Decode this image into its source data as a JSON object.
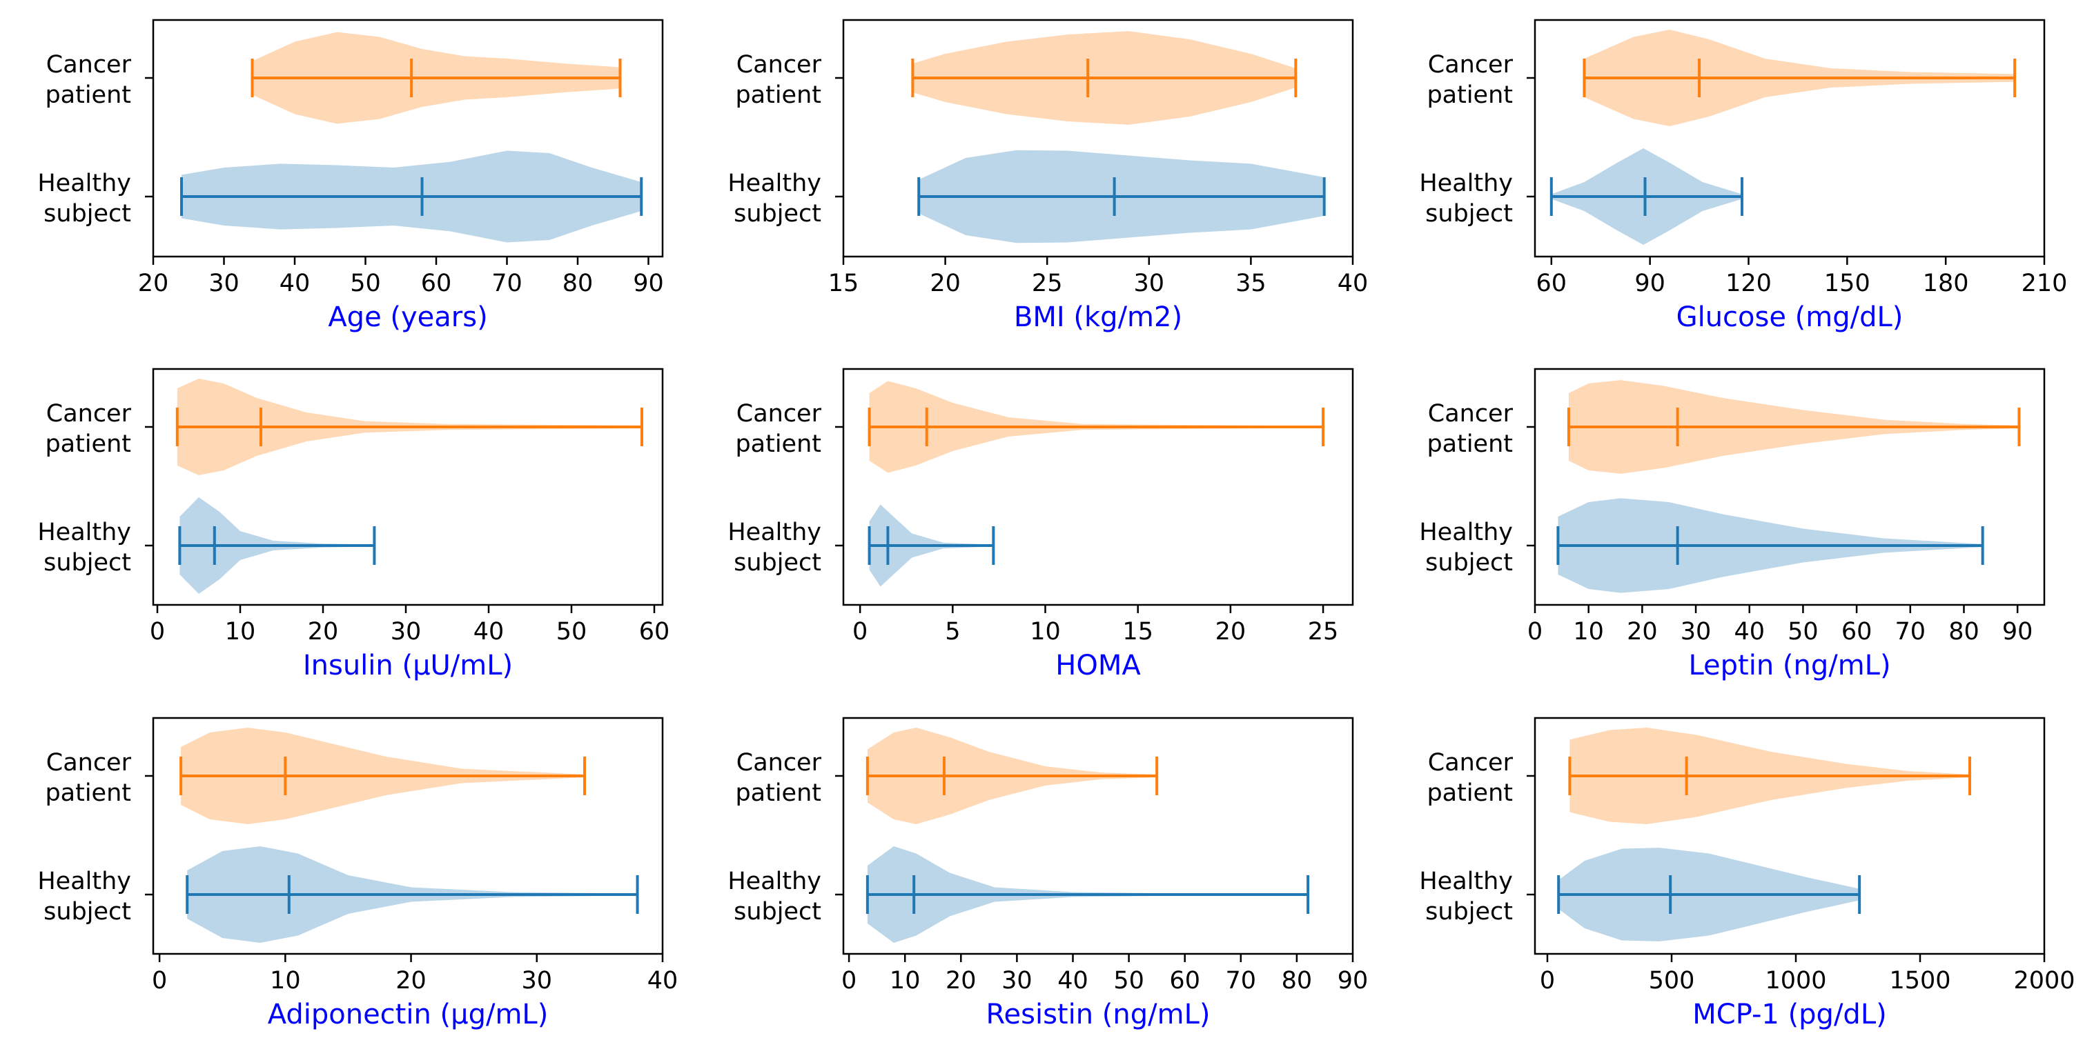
{
  "colors": {
    "cancer": "#ff7f0e",
    "healthy": "#1f77b4",
    "xlabel": "#0000ff",
    "axes": "#000000"
  },
  "chart_data": [
    {
      "type": "violin",
      "xlabel": "Age (years)",
      "xlim": [
        20,
        92
      ],
      "xticks": [
        20,
        30,
        40,
        50,
        60,
        70,
        80,
        90
      ],
      "categories": [
        "Cancer\npatient",
        "Healthy\nsubject"
      ],
      "series": [
        {
          "key": "cancer",
          "min": 34,
          "median": 56.5,
          "max": 86,
          "density": [
            [
              34,
              0.35
            ],
            [
              40,
              0.75
            ],
            [
              46,
              0.95
            ],
            [
              52,
              0.85
            ],
            [
              58,
              0.6
            ],
            [
              64,
              0.45
            ],
            [
              70,
              0.4
            ],
            [
              78,
              0.3
            ],
            [
              86,
              0.22
            ]
          ]
        },
        {
          "key": "healthy",
          "min": 24,
          "median": 58,
          "max": 89,
          "density": [
            [
              24,
              0.45
            ],
            [
              30,
              0.6
            ],
            [
              38,
              0.68
            ],
            [
              46,
              0.65
            ],
            [
              54,
              0.6
            ],
            [
              62,
              0.72
            ],
            [
              70,
              0.95
            ],
            [
              76,
              0.9
            ],
            [
              82,
              0.6
            ],
            [
              89,
              0.3
            ]
          ]
        }
      ]
    },
    {
      "type": "violin",
      "xlabel": "BMI (kg/m2)",
      "xlim": [
        15,
        40
      ],
      "xticks": [
        15,
        20,
        25,
        30,
        35,
        40
      ],
      "categories": [
        "Cancer\npatient",
        "Healthy\nsubject"
      ],
      "series": [
        {
          "key": "cancer",
          "min": 18.4,
          "median": 27,
          "max": 37.2,
          "density": [
            [
              18.4,
              0.3
            ],
            [
              20,
              0.5
            ],
            [
              23,
              0.75
            ],
            [
              26,
              0.9
            ],
            [
              29,
              0.97
            ],
            [
              32,
              0.8
            ],
            [
              35,
              0.5
            ],
            [
              37.2,
              0.2
            ]
          ]
        },
        {
          "key": "healthy",
          "min": 18.7,
          "median": 28.3,
          "max": 38.6,
          "density": [
            [
              18.7,
              0.35
            ],
            [
              21,
              0.8
            ],
            [
              23.5,
              0.96
            ],
            [
              26,
              0.95
            ],
            [
              29,
              0.85
            ],
            [
              32,
              0.75
            ],
            [
              35,
              0.68
            ],
            [
              38.6,
              0.4
            ]
          ]
        }
      ]
    },
    {
      "type": "violin",
      "xlabel": "Glucose (mg/dL)",
      "xlim": [
        55,
        210
      ],
      "xticks": [
        60,
        90,
        120,
        150,
        180,
        210
      ],
      "categories": [
        "Cancer\npatient",
        "Healthy\nsubject"
      ],
      "series": [
        {
          "key": "cancer",
          "min": 70,
          "median": 105,
          "max": 201,
          "density": [
            [
              70,
              0.4
            ],
            [
              85,
              0.85
            ],
            [
              96,
              1.0
            ],
            [
              108,
              0.8
            ],
            [
              125,
              0.4
            ],
            [
              145,
              0.2
            ],
            [
              170,
              0.12
            ],
            [
              201,
              0.08
            ]
          ]
        },
        {
          "key": "healthy",
          "min": 60,
          "median": 88.5,
          "max": 118,
          "density": [
            [
              60,
              0.05
            ],
            [
              70,
              0.3
            ],
            [
              80,
              0.7
            ],
            [
              88,
              1.0
            ],
            [
              96,
              0.7
            ],
            [
              106,
              0.3
            ],
            [
              118,
              0.05
            ]
          ]
        }
      ]
    },
    {
      "type": "violin",
      "xlabel": "Insulin (µU/mL)",
      "xlim": [
        -0.5,
        61
      ],
      "xticks": [
        0,
        10,
        20,
        30,
        40,
        50,
        60
      ],
      "categories": [
        "Cancer\npatient",
        "Healthy\nsubject"
      ],
      "series": [
        {
          "key": "cancer",
          "min": 2.4,
          "median": 12.5,
          "max": 58.5,
          "density": [
            [
              2.4,
              0.8
            ],
            [
              5,
              1.0
            ],
            [
              8,
              0.9
            ],
            [
              12,
              0.6
            ],
            [
              18,
              0.3
            ],
            [
              25,
              0.12
            ],
            [
              35,
              0.06
            ],
            [
              58.5,
              0.03
            ]
          ]
        },
        {
          "key": "healthy",
          "min": 2.7,
          "median": 6.9,
          "max": 26.2,
          "density": [
            [
              2.7,
              0.6
            ],
            [
              5,
              1.0
            ],
            [
              7.5,
              0.7
            ],
            [
              10,
              0.3
            ],
            [
              14,
              0.1
            ],
            [
              20,
              0.04
            ],
            [
              26.2,
              0.02
            ]
          ]
        }
      ]
    },
    {
      "type": "violin",
      "xlabel": "HOMA",
      "xlim": [
        -0.9,
        26.6
      ],
      "xticks": [
        0,
        5,
        10,
        15,
        20,
        25
      ],
      "categories": [
        "Cancer\npatient",
        "Healthy\nsubject"
      ],
      "series": [
        {
          "key": "cancer",
          "min": 0.5,
          "median": 3.6,
          "max": 25,
          "density": [
            [
              0.5,
              0.7
            ],
            [
              1.5,
              0.95
            ],
            [
              3,
              0.8
            ],
            [
              5,
              0.5
            ],
            [
              8,
              0.2
            ],
            [
              12,
              0.06
            ],
            [
              25,
              0.02
            ]
          ]
        },
        {
          "key": "healthy",
          "min": 0.5,
          "median": 1.5,
          "max": 7.2,
          "density": [
            [
              0.5,
              0.5
            ],
            [
              1.1,
              0.85
            ],
            [
              1.8,
              0.6
            ],
            [
              2.8,
              0.25
            ],
            [
              4.5,
              0.06
            ],
            [
              7.2,
              0.02
            ]
          ]
        }
      ]
    },
    {
      "type": "violin",
      "xlabel": "Leptin (ng/mL)",
      "xlim": [
        0,
        95
      ],
      "xticks": [
        0,
        10,
        20,
        30,
        40,
        50,
        60,
        70,
        80,
        90
      ],
      "categories": [
        "Cancer\npatient",
        "Healthy\nsubject"
      ],
      "series": [
        {
          "key": "cancer",
          "min": 6.3,
          "median": 26.6,
          "max": 90.3,
          "density": [
            [
              6.3,
              0.7
            ],
            [
              10,
              0.9
            ],
            [
              16,
              0.97
            ],
            [
              24,
              0.85
            ],
            [
              35,
              0.6
            ],
            [
              50,
              0.35
            ],
            [
              65,
              0.15
            ],
            [
              80,
              0.06
            ],
            [
              90.3,
              0.03
            ]
          ]
        },
        {
          "key": "healthy",
          "min": 4.3,
          "median": 26.6,
          "max": 83.5,
          "density": [
            [
              4.3,
              0.6
            ],
            [
              10,
              0.9
            ],
            [
              16,
              0.98
            ],
            [
              25,
              0.9
            ],
            [
              35,
              0.65
            ],
            [
              50,
              0.35
            ],
            [
              65,
              0.15
            ],
            [
              83.5,
              0.03
            ]
          ]
        }
      ]
    },
    {
      "type": "violin",
      "xlabel": "Adiponectin (µg/mL)",
      "xlim": [
        -0.5,
        40
      ],
      "xticks": [
        0,
        10,
        20,
        30,
        40
      ],
      "categories": [
        "Cancer\npatient",
        "Healthy\nsubject"
      ],
      "series": [
        {
          "key": "cancer",
          "min": 1.7,
          "median": 10,
          "max": 33.8,
          "density": [
            [
              1.7,
              0.6
            ],
            [
              4,
              0.9
            ],
            [
              7,
              1.0
            ],
            [
              10,
              0.9
            ],
            [
              14,
              0.65
            ],
            [
              18,
              0.4
            ],
            [
              24,
              0.15
            ],
            [
              33.8,
              0.03
            ]
          ]
        },
        {
          "key": "healthy",
          "min": 2.2,
          "median": 10.3,
          "max": 38,
          "density": [
            [
              2.2,
              0.5
            ],
            [
              5,
              0.9
            ],
            [
              8,
              1.0
            ],
            [
              11,
              0.85
            ],
            [
              15,
              0.4
            ],
            [
              20,
              0.15
            ],
            [
              28,
              0.05
            ],
            [
              38,
              0.02
            ]
          ]
        }
      ]
    },
    {
      "type": "violin",
      "xlabel": "Resistin (ng/mL)",
      "xlim": [
        -1,
        90
      ],
      "xticks": [
        0,
        10,
        20,
        30,
        40,
        50,
        60,
        70,
        80,
        90
      ],
      "categories": [
        "Cancer\npatient",
        "Healthy\nsubject"
      ],
      "series": [
        {
          "key": "cancer",
          "min": 3.3,
          "median": 17,
          "max": 55,
          "density": [
            [
              3.3,
              0.55
            ],
            [
              8,
              0.9
            ],
            [
              12,
              1.0
            ],
            [
              18,
              0.8
            ],
            [
              25,
              0.5
            ],
            [
              35,
              0.2
            ],
            [
              45,
              0.07
            ],
            [
              55,
              0.03
            ]
          ]
        },
        {
          "key": "healthy",
          "min": 3.3,
          "median": 11.6,
          "max": 82,
          "density": [
            [
              3.3,
              0.6
            ],
            [
              8,
              1.0
            ],
            [
              12,
              0.85
            ],
            [
              18,
              0.45
            ],
            [
              26,
              0.15
            ],
            [
              40,
              0.05
            ],
            [
              60,
              0.02
            ],
            [
              82,
              0.01
            ]
          ]
        }
      ]
    },
    {
      "type": "violin",
      "xlabel": "MCP-1 (pg/dL)",
      "xlim": [
        -50,
        2000
      ],
      "xticks": [
        0,
        500,
        1000,
        1500,
        2000
      ],
      "categories": [
        "Cancer\npatient",
        "Healthy\nsubject"
      ],
      "series": [
        {
          "key": "cancer",
          "min": 90,
          "median": 560,
          "max": 1700,
          "density": [
            [
              90,
              0.75
            ],
            [
              250,
              0.95
            ],
            [
              400,
              1.0
            ],
            [
              600,
              0.85
            ],
            [
              900,
              0.5
            ],
            [
              1200,
              0.25
            ],
            [
              1450,
              0.1
            ],
            [
              1700,
              0.03
            ]
          ]
        },
        {
          "key": "healthy",
          "min": 45,
          "median": 495,
          "max": 1256,
          "density": [
            [
              45,
              0.3
            ],
            [
              150,
              0.7
            ],
            [
              300,
              0.95
            ],
            [
              450,
              0.97
            ],
            [
              650,
              0.85
            ],
            [
              850,
              0.6
            ],
            [
              1050,
              0.35
            ],
            [
              1256,
              0.12
            ]
          ]
        }
      ]
    }
  ]
}
